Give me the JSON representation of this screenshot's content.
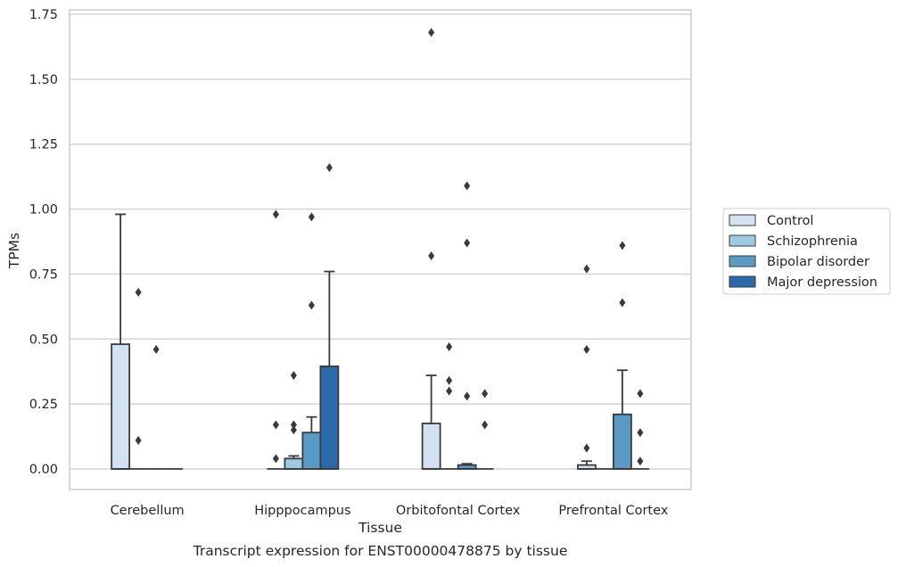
{
  "chart_data": {
    "type": "boxplot",
    "title": "Transcript expression for ENST00000478875 by tissue",
    "xlabel": "Tissue",
    "ylabel": "TPMs",
    "ylim": [
      -0.08,
      1.76
    ],
    "yticks": [
      "0.00",
      "0.25",
      "0.50",
      "0.75",
      "1.00",
      "1.25",
      "1.50",
      "1.75"
    ],
    "ytick_values": [
      0,
      0.25,
      0.5,
      0.75,
      1.0,
      1.25,
      1.5,
      1.75
    ],
    "grid": "horizontal",
    "legend_position": "right",
    "categories": [
      "Cerebellum",
      "Hipppocampus",
      "Orbitofontal Cortex",
      "Prefrontal Cortex"
    ],
    "series": [
      {
        "name": "Control",
        "color": "#d3e2f3",
        "boxes": [
          {
            "q1": 0,
            "median": 0,
            "q3": 0.48,
            "whisker_low": 0,
            "whisker_high": 0.98,
            "outliers": []
          },
          {
            "q1": 0,
            "median": 0,
            "q3": 0,
            "whisker_low": 0,
            "whisker_high": 0,
            "outliers": [
              0.98,
              0.17,
              0.04
            ]
          },
          {
            "q1": 0,
            "median": 0,
            "q3": 0.175,
            "whisker_low": 0,
            "whisker_high": 0.36,
            "outliers": [
              1.68,
              0.82
            ]
          },
          {
            "q1": 0,
            "median": 0,
            "q3": 0.015,
            "whisker_low": 0,
            "whisker_high": 0.03,
            "outliers": [
              0.77,
              0.46,
              0.08
            ]
          }
        ]
      },
      {
        "name": "Schizophrenia",
        "color": "#9ecae1",
        "boxes": [
          {
            "q1": 0,
            "median": 0,
            "q3": 0,
            "whisker_low": 0,
            "whisker_high": 0,
            "outliers": [
              0.68,
              0.11
            ]
          },
          {
            "q1": 0,
            "median": 0,
            "q3": 0.04,
            "whisker_low": 0,
            "whisker_high": 0.05,
            "outliers": [
              0.36,
              0.17,
              0.15
            ]
          },
          {
            "q1": 0,
            "median": 0,
            "q3": 0,
            "whisker_low": 0,
            "whisker_high": 0,
            "outliers": [
              0.47,
              0.34,
              0.3
            ]
          },
          {
            "q1": 0,
            "median": 0,
            "q3": 0,
            "whisker_low": 0,
            "whisker_high": 0,
            "outliers": []
          }
        ]
      },
      {
        "name": "Bipolar disorder",
        "color": "#5a9ac6",
        "boxes": [
          {
            "q1": 0,
            "median": 0,
            "q3": 0,
            "whisker_low": 0,
            "whisker_high": 0,
            "outliers": [
              0.46
            ]
          },
          {
            "q1": 0,
            "median": 0,
            "q3": 0.14,
            "whisker_low": 0,
            "whisker_high": 0.2,
            "outliers": [
              0.97,
              0.63
            ]
          },
          {
            "q1": 0,
            "median": 0,
            "q3": 0.015,
            "whisker_low": 0,
            "whisker_high": 0.02,
            "outliers": [
              1.09,
              0.87,
              0.28
            ]
          },
          {
            "q1": 0,
            "median": 0,
            "q3": 0.21,
            "whisker_low": 0,
            "whisker_high": 0.38,
            "outliers": [
              0.86,
              0.64
            ]
          }
        ]
      },
      {
        "name": "Major depression",
        "color": "#2a6aa8",
        "boxes": [
          {
            "q1": 0,
            "median": 0,
            "q3": 0,
            "whisker_low": 0,
            "whisker_high": 0,
            "outliers": []
          },
          {
            "q1": 0,
            "median": 0,
            "q3": 0.395,
            "whisker_low": 0,
            "whisker_high": 0.76,
            "outliers": [
              1.16
            ]
          },
          {
            "q1": 0,
            "median": 0,
            "q3": 0,
            "whisker_low": 0,
            "whisker_high": 0,
            "outliers": [
              0.29,
              0.17
            ]
          },
          {
            "q1": 0,
            "median": 0,
            "q3": 0,
            "whisker_low": 0,
            "whisker_high": 0,
            "outliers": [
              0.29,
              0.14,
              0.03
            ]
          }
        ]
      }
    ]
  }
}
